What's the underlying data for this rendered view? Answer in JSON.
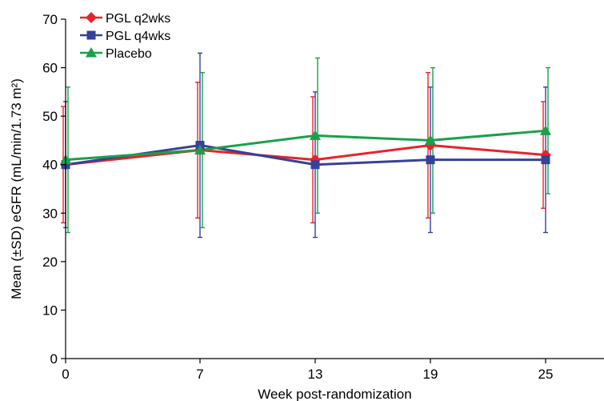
{
  "chart_data": {
    "type": "line",
    "xlabel": "Week post-randomization",
    "ylabel": "Mean (±SD) eGFR (mL/min/1.73 m²)",
    "x": [
      0,
      7,
      13,
      19,
      25
    ],
    "x_ticks": [
      "0",
      "7",
      "13",
      "19",
      "25"
    ],
    "xlim": [
      0,
      29
    ],
    "ylim": [
      0,
      70
    ],
    "y_ticks": [
      "0",
      "10",
      "20",
      "30",
      "40",
      "50",
      "60",
      "70"
    ],
    "grid": false,
    "legend_position": "top-left",
    "series": [
      {
        "name": "PGL q2wks",
        "color": "#e8232a",
        "marker": "diamond",
        "values": [
          40,
          43,
          41,
          44,
          42
        ],
        "err_low": [
          28,
          29,
          28,
          29,
          31
        ],
        "err_high": [
          52,
          57,
          54,
          59,
          53
        ]
      },
      {
        "name": "PGL q4wks",
        "color": "#36419a",
        "marker": "square",
        "values": [
          40,
          44,
          40,
          41,
          41
        ],
        "err_low": [
          27,
          25,
          25,
          26,
          26
        ],
        "err_high": [
          53,
          63,
          55,
          56,
          56
        ]
      },
      {
        "name": "Placebo",
        "color": "#1aa04a",
        "marker": "triangle",
        "values": [
          41,
          43,
          46,
          45,
          47
        ],
        "err_low": [
          26,
          27,
          30,
          30,
          34
        ],
        "err_high": [
          56,
          59,
          62,
          60,
          60
        ]
      }
    ]
  }
}
